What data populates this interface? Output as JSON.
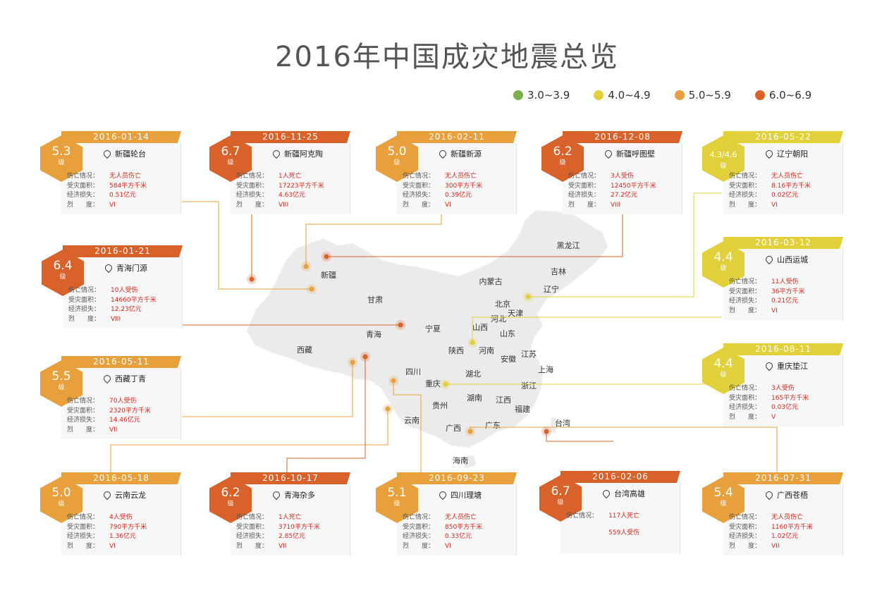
{
  "title": "2016年中国成灾地震总览",
  "legend": [
    {
      "label": "3.0~3.9",
      "color": "#7aaf4b"
    },
    {
      "label": "4.0~4.9",
      "color": "#e2d03a"
    },
    {
      "label": "5.0~5.9",
      "color": "#e8a03c"
    },
    {
      "label": "6.0~6.9",
      "color": "#d9622b"
    }
  ],
  "provinces": [
    "黑龙江",
    "吉林",
    "辽宁",
    "内蒙古",
    "北京",
    "天津",
    "河北",
    "新疆",
    "甘肃",
    "宁夏",
    "山西",
    "山东",
    "青海",
    "陕西",
    "河南",
    "江苏",
    "安徽",
    "上海",
    "西藏",
    "四川",
    "湖北",
    "重庆",
    "浙江",
    "湖南",
    "江西",
    "贵州",
    "福建",
    "云南",
    "广西",
    "广东",
    "台湾",
    "海南"
  ],
  "row_labels": {
    "casualty": "伤亡情况：",
    "area": "受灾面积：",
    "loss": "经济损失：",
    "intensity": "烈　　度："
  },
  "level_char": "级",
  "cards": [
    {
      "id": "xinjiang-luntai",
      "date": "2016-01-14",
      "mag": "5.3",
      "loc": "新疆轮台",
      "color": "#e8a03c",
      "rows": {
        "casualty": "无人员伤亡",
        "area": "584平方千米",
        "loss": "0.51亿元",
        "intensity": "VI"
      }
    },
    {
      "id": "xinjiang-akto",
      "date": "2016-11-25",
      "mag": "6.7",
      "loc": "新疆阿克陶",
      "color": "#d9622b",
      "rows": {
        "casualty": "1人死亡",
        "area": "17223平方千米",
        "loss": "4.63亿元",
        "intensity": "VIII"
      }
    },
    {
      "id": "xinjiang-xinyuan",
      "date": "2016-02-11",
      "mag": "5.0",
      "loc": "新疆新源",
      "color": "#e8a03c",
      "rows": {
        "casualty": "无人员伤亡",
        "area": "300平方千米",
        "loss": "0.39亿元",
        "intensity": "VI"
      }
    },
    {
      "id": "xinjiang-hutubi",
      "date": "2016-12-08",
      "mag": "6.2",
      "loc": "新疆呼图壁",
      "color": "#d9622b",
      "rows": {
        "casualty": "3人受伤",
        "area": "12450平方千米",
        "loss": "27.2亿元",
        "intensity": "VIII"
      }
    },
    {
      "id": "liaoning-chaoyang",
      "date": "2016-05-22",
      "mag": "4.3/4.6",
      "loc": "辽宁朝阳",
      "color": "#e2d03a",
      "rows": {
        "casualty": "无人员伤亡",
        "area": "8.16平方千米",
        "loss": "0.02亿元",
        "intensity": "VI"
      }
    },
    {
      "id": "qinghai-menyuan",
      "date": "2016-01-21",
      "mag": "6.4",
      "loc": "青海门源",
      "color": "#d9622b",
      "rows": {
        "casualty": "10人受伤",
        "area": "14660平方千米",
        "loss": "12.23亿元",
        "intensity": "VIII"
      }
    },
    {
      "id": "shanxi-yuncheng",
      "date": "2016-03-12",
      "mag": "4.4",
      "loc": "山西运城",
      "color": "#e2d03a",
      "rows": {
        "casualty": "11人受伤",
        "area": "36平方千米",
        "loss": "0.21亿元",
        "intensity": "VI"
      }
    },
    {
      "id": "xizang-dingqing",
      "date": "2016-05-11",
      "mag": "5.5",
      "loc": "西藏丁青",
      "color": "#e8a03c",
      "rows": {
        "casualty": "70人受伤",
        "area": "2320平方千米",
        "loss": "14.46亿元",
        "intensity": "VII"
      }
    },
    {
      "id": "chongqing-dianjiang",
      "date": "2016-08-11",
      "mag": "4.4",
      "loc": "重庆垫江",
      "color": "#e2d03a",
      "rows": {
        "casualty": "3人受伤",
        "area": "165平方千米",
        "loss": "0.03亿元",
        "intensity": "V"
      }
    },
    {
      "id": "yunnan-yunlong",
      "date": "2016-05-18",
      "mag": "5.0",
      "loc": "云南云龙",
      "color": "#e8a03c",
      "rows": {
        "casualty": "4人受伤",
        "area": "790平方千米",
        "loss": "1.36亿元",
        "intensity": "VI"
      }
    },
    {
      "id": "qinghai-zaduo",
      "date": "2016-10-17",
      "mag": "6.2",
      "loc": "青海杂多",
      "color": "#d9622b",
      "rows": {
        "casualty": "1人死亡",
        "area": "3710平方千米",
        "loss": "2.85亿元",
        "intensity": "VII"
      }
    },
    {
      "id": "sichuan-litang",
      "date": "2016-09-23",
      "mag": "5.1",
      "loc": "四川理塘",
      "color": "#e8a03c",
      "rows": {
        "casualty": "无人员伤亡",
        "area": "850平方千米",
        "loss": "0.33亿元",
        "intensity": "VI"
      }
    },
    {
      "id": "taiwan-gaoxiong",
      "date": "2016-02-06",
      "mag": "6.7",
      "loc": "台湾高雄",
      "color": "#d9622b",
      "taiwan": true,
      "rows": {
        "casualty": "117人死亡",
        "casualty2": "559人受伤"
      }
    },
    {
      "id": "guangxi-cangwu",
      "date": "2016-07-31",
      "mag": "5.4",
      "loc": "广西苍梧",
      "color": "#e8a03c",
      "rows": {
        "casualty": "无人员伤亡",
        "area": "1160平方千米",
        "loss": "1.02亿元",
        "intensity": "VII"
      }
    }
  ]
}
